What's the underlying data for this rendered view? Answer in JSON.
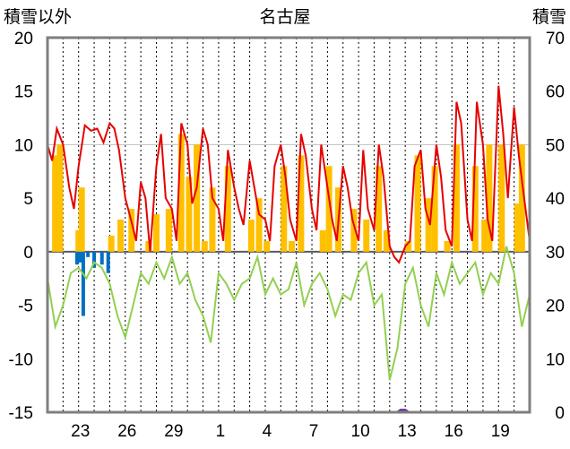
{
  "chart_data": {
    "type": "line",
    "title": "名古屋",
    "left_axis_label": "積雪以外",
    "right_axis_label": "積雪",
    "left_axis": {
      "ylim": [
        -15,
        20
      ],
      "ticks": [
        "20",
        "15",
        "10",
        "5",
        "0",
        "-5",
        "-10",
        "-15"
      ]
    },
    "right_axis": {
      "ylim": [
        0,
        70
      ],
      "ticks": [
        "70",
        "60",
        "50",
        "40",
        "30",
        "20",
        "10",
        "0"
      ]
    },
    "x_tick_labels": [
      "23",
      "26",
      "29",
      "1",
      "4",
      "7",
      "10",
      "13",
      "16",
      "19"
    ],
    "x_range_days": [
      0,
      31
    ],
    "grid": "vertical dashed daily lines",
    "colors": {
      "max_temp": "#e60000",
      "min_temp": "#92d050",
      "sun": "#ffc000",
      "precip": "#0070c0",
      "snow": "#7030a0",
      "frame": "#7f7f7f"
    },
    "max_temp": [
      [
        0,
        10
      ],
      [
        0.3,
        8.5
      ],
      [
        0.6,
        11.5
      ],
      [
        1,
        10
      ],
      [
        1.4,
        6
      ],
      [
        1.7,
        4
      ],
      [
        2,
        8
      ],
      [
        2.4,
        11.8
      ],
      [
        2.8,
        11.3
      ],
      [
        3.2,
        11.5
      ],
      [
        3.6,
        10.2
      ],
      [
        4,
        12
      ],
      [
        4.3,
        11.5
      ],
      [
        4.6,
        9.5
      ],
      [
        5,
        5
      ],
      [
        5.4,
        2.8
      ],
      [
        5.7,
        1
      ],
      [
        6,
        6.5
      ],
      [
        6.3,
        5
      ],
      [
        6.6,
        0
      ],
      [
        7,
        8
      ],
      [
        7.3,
        11
      ],
      [
        7.6,
        5
      ],
      [
        8,
        4
      ],
      [
        8.3,
        1
      ],
      [
        8.6,
        12
      ],
      [
        9,
        10
      ],
      [
        9.3,
        4.5
      ],
      [
        9.6,
        6
      ],
      [
        10,
        11.5
      ],
      [
        10.3,
        10
      ],
      [
        10.6,
        5
      ],
      [
        11,
        4
      ],
      [
        11.3,
        1
      ],
      [
        11.6,
        9.5
      ],
      [
        12,
        6
      ],
      [
        12.3,
        4
      ],
      [
        12.6,
        2.5
      ],
      [
        13,
        8.5
      ],
      [
        13.3,
        6
      ],
      [
        13.6,
        3.5
      ],
      [
        14,
        3
      ],
      [
        14.3,
        1
      ],
      [
        14.6,
        8
      ],
      [
        15,
        10
      ],
      [
        15.3,
        7
      ],
      [
        15.6,
        3
      ],
      [
        16,
        1
      ],
      [
        16.3,
        11
      ],
      [
        16.6,
        9
      ],
      [
        17,
        4
      ],
      [
        17.3,
        2
      ],
      [
        17.6,
        10
      ],
      [
        18,
        6
      ],
      [
        18.3,
        3
      ],
      [
        18.6,
        1
      ],
      [
        19,
        8
      ],
      [
        19.3,
        6
      ],
      [
        19.6,
        3
      ],
      [
        20,
        1
      ],
      [
        20.3,
        9.5
      ],
      [
        20.6,
        4
      ],
      [
        21,
        2
      ],
      [
        21.3,
        10
      ],
      [
        21.6,
        7
      ],
      [
        22,
        0.5
      ],
      [
        22.3,
        -0.5
      ],
      [
        22.6,
        -1
      ],
      [
        23,
        0.5
      ],
      [
        23.3,
        1
      ],
      [
        23.6,
        8
      ],
      [
        24,
        9.5
      ],
      [
        24.3,
        4
      ],
      [
        24.6,
        2.5
      ],
      [
        25,
        10
      ],
      [
        25.3,
        7
      ],
      [
        25.6,
        2
      ],
      [
        26,
        0.5
      ],
      [
        26.3,
        14
      ],
      [
        26.6,
        12
      ],
      [
        27,
        3
      ],
      [
        27.3,
        1
      ],
      [
        27.6,
        14
      ],
      [
        28,
        10
      ],
      [
        28.3,
        3
      ],
      [
        28.6,
        1
      ],
      [
        29,
        15.5
      ],
      [
        29.3,
        11
      ],
      [
        29.6,
        5
      ],
      [
        30,
        13.5
      ],
      [
        30.3,
        9
      ],
      [
        30.6,
        5.5
      ],
      [
        31,
        1
      ]
    ],
    "min_temp": [
      [
        0,
        -2.5
      ],
      [
        0.5,
        -7
      ],
      [
        1,
        -5
      ],
      [
        1.5,
        -2
      ],
      [
        2,
        -1.5
      ],
      [
        2.5,
        -2.5
      ],
      [
        3,
        -1
      ],
      [
        3.5,
        -1.5
      ],
      [
        4,
        -3
      ],
      [
        4.5,
        -6
      ],
      [
        5,
        -8
      ],
      [
        5.5,
        -5
      ],
      [
        6,
        -2
      ],
      [
        6.5,
        -3
      ],
      [
        7,
        -1
      ],
      [
        7.5,
        -2.5
      ],
      [
        8,
        -0.5
      ],
      [
        8.5,
        -3
      ],
      [
        9,
        -2
      ],
      [
        9.5,
        -4.5
      ],
      [
        10,
        -6
      ],
      [
        10.5,
        -8.5
      ],
      [
        11,
        -2
      ],
      [
        11.5,
        -3
      ],
      [
        12,
        -4.5
      ],
      [
        12.5,
        -3
      ],
      [
        13,
        -2.5
      ],
      [
        13.5,
        -0.5
      ],
      [
        14,
        -4
      ],
      [
        14.5,
        -2.5
      ],
      [
        15,
        -4
      ],
      [
        15.5,
        -3.5
      ],
      [
        16,
        -1
      ],
      [
        16.5,
        -5
      ],
      [
        17,
        -3
      ],
      [
        17.5,
        -2
      ],
      [
        18,
        -3.5
      ],
      [
        18.5,
        -6
      ],
      [
        19,
        -4
      ],
      [
        19.5,
        -4.5
      ],
      [
        20,
        -2
      ],
      [
        20.5,
        -1
      ],
      [
        21,
        -5
      ],
      [
        21.5,
        -4
      ],
      [
        22,
        -12
      ],
      [
        22.5,
        -9
      ],
      [
        23,
        -3
      ],
      [
        23.5,
        -1.5
      ],
      [
        24,
        -5
      ],
      [
        24.5,
        -7
      ],
      [
        25,
        -2
      ],
      [
        25.5,
        -4
      ],
      [
        26,
        -1
      ],
      [
        26.5,
        -3
      ],
      [
        27,
        -2
      ],
      [
        27.5,
        -1
      ],
      [
        28,
        -4
      ],
      [
        28.5,
        -2
      ],
      [
        29,
        -3
      ],
      [
        29.5,
        0.5
      ],
      [
        30,
        -2
      ],
      [
        30.5,
        -7
      ],
      [
        31,
        -4
      ]
    ],
    "sun": [
      [
        0.5,
        9
      ],
      [
        0.8,
        10
      ],
      [
        2,
        2
      ],
      [
        2.2,
        6
      ],
      [
        4.1,
        1.5
      ],
      [
        4.7,
        3
      ],
      [
        5.4,
        4
      ],
      [
        6.5,
        1
      ],
      [
        7,
        3.5
      ],
      [
        7.8,
        4
      ],
      [
        8.6,
        11
      ],
      [
        9.1,
        7
      ],
      [
        9.6,
        10
      ],
      [
        10.1,
        1
      ],
      [
        10.6,
        6
      ],
      [
        11.6,
        8
      ],
      [
        13.1,
        3
      ],
      [
        13.6,
        5
      ],
      [
        14.1,
        1
      ],
      [
        15.2,
        8
      ],
      [
        15.7,
        1
      ],
      [
        16.3,
        9
      ],
      [
        17.7,
        2
      ],
      [
        18.1,
        8
      ],
      [
        18.7,
        6
      ],
      [
        19.7,
        4
      ],
      [
        20.5,
        3
      ],
      [
        21.3,
        8
      ],
      [
        21.8,
        2
      ],
      [
        23.2,
        1
      ],
      [
        23.8,
        9
      ],
      [
        24.5,
        5
      ],
      [
        24.9,
        8
      ],
      [
        25.7,
        1
      ],
      [
        26.3,
        10
      ],
      [
        27.5,
        8
      ],
      [
        28.1,
        3
      ],
      [
        28.4,
        10
      ],
      [
        29.2,
        10
      ],
      [
        30.2,
        4.5
      ],
      [
        30.5,
        10
      ]
    ],
    "precip": [
      [
        1.9,
        -1.2
      ],
      [
        2.1,
        -1
      ],
      [
        2.3,
        -6
      ],
      [
        2.6,
        -0.5
      ],
      [
        3,
        -1.5
      ],
      [
        3.5,
        -1.2
      ],
      [
        3.9,
        -2
      ]
    ],
    "snow": [
      [
        0,
        0
      ],
      [
        22.5,
        0
      ],
      [
        22.7,
        0.4
      ],
      [
        23,
        0.4
      ],
      [
        23.2,
        0
      ],
      [
        31,
        0
      ]
    ]
  }
}
